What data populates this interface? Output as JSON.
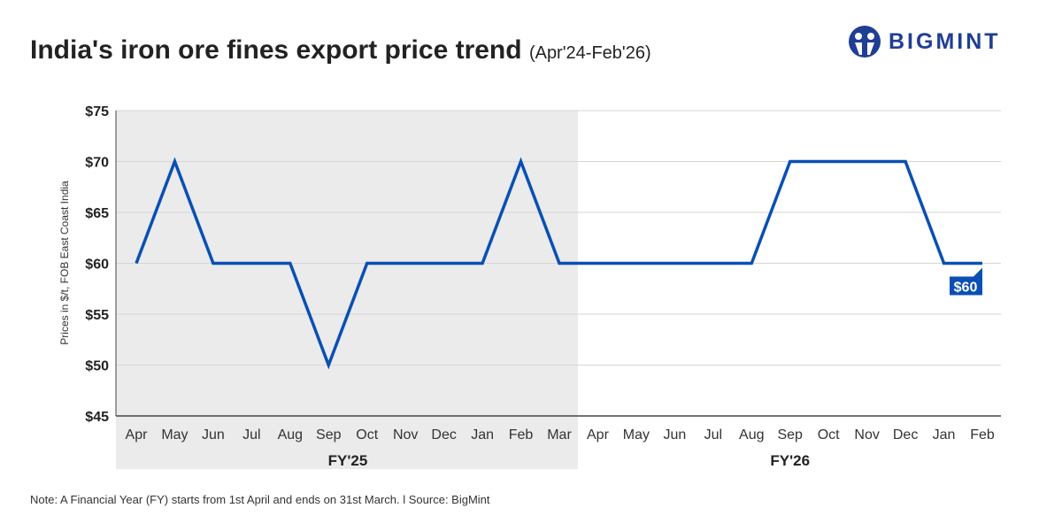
{
  "header": {
    "title": "India's iron ore fines export price trend",
    "subtitle": "(Apr'24-Feb'26)"
  },
  "logo": {
    "text": "BIGMINT"
  },
  "note": "Note: A Financial Year (FY) starts from 1st April and ends on 31st March.  l  Source: BigMint",
  "chart_data": {
    "type": "line",
    "title": "India's iron ore fines export price trend",
    "ylabel": "Prices in $/t, FOB East Coast India",
    "ylim": [
      45,
      75
    ],
    "yticks": [
      "$45",
      "$50",
      "$55",
      "$60",
      "$65",
      "$70",
      "$75"
    ],
    "categories": [
      "Apr",
      "May",
      "Jun",
      "Jul",
      "Aug",
      "Sep",
      "Oct",
      "Nov",
      "Dec",
      "Jan",
      "Feb",
      "Mar",
      "Apr",
      "May",
      "Jun",
      "Jul",
      "Aug",
      "Sep",
      "Oct",
      "Nov",
      "Dec",
      "Jan",
      "Feb"
    ],
    "groups": [
      {
        "label": "FY'25",
        "start": 0,
        "end": 11
      },
      {
        "label": "FY'26",
        "start": 12,
        "end": 22
      }
    ],
    "series": [
      {
        "name": "Price",
        "color": "#0a4fb4",
        "values": [
          60,
          70,
          60,
          60,
          60,
          50,
          60,
          60,
          60,
          60,
          70,
          60,
          60,
          60,
          60,
          60,
          60,
          70,
          70,
          70,
          70,
          60,
          60
        ]
      }
    ],
    "last_label": "$60",
    "grid": true
  }
}
